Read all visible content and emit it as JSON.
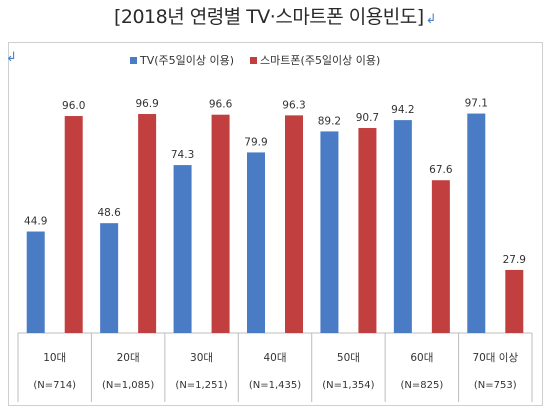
{
  "title": "[2018년 연령별 TV·스마트폰 이용빈도]",
  "return_mark": "↲",
  "colors": {
    "tv": "#4a7cc5",
    "phone": "#c23f3f",
    "grid": "#bdbdbd"
  },
  "chart_data": {
    "type": "bar",
    "title": "[2018년 연령별 TV·스마트폰 이용빈도]",
    "categories": [
      "10대",
      "20대",
      "30대",
      "40대",
      "50대",
      "60대",
      "70대 이상"
    ],
    "sample_sizes": [
      "(N=714)",
      "(N=1,085)",
      "(N=1,251)",
      "(N=1,435)",
      "(N=1,354)",
      "(N=825)",
      "(N=753)"
    ],
    "series": [
      {
        "name": "TV(주5일이상 이용)",
        "values": [
          44.9,
          48.6,
          74.3,
          79.9,
          89.2,
          94.2,
          97.1
        ]
      },
      {
        "name": "스마트폰(주5일이상 이용)",
        "values": [
          96.0,
          96.9,
          96.6,
          96.3,
          90.7,
          67.6,
          27.9
        ]
      }
    ],
    "ylim": [
      0,
      100
    ],
    "legend": "top",
    "grid": false
  }
}
